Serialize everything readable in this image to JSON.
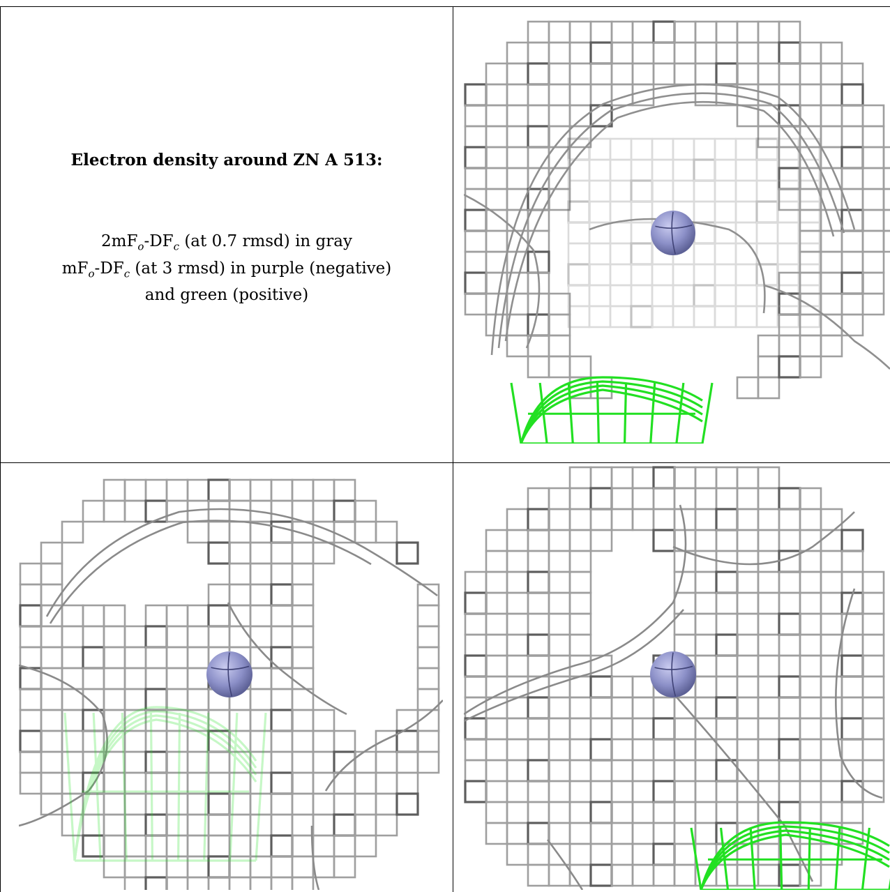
{
  "caption": {
    "title": "Electron density around ZN A 513:",
    "line1": {
      "pre": "2mF",
      "sub1": "o",
      "mid": "-DF",
      "sub2": "c",
      "post": " (at 0.7 rmsd) in gray"
    },
    "line2": {
      "pre": "mF",
      "sub1": "o",
      "mid": "-DF",
      "sub2": "c",
      "post": " (at 3 rmsd) in purple (negative)"
    },
    "line3": "and green (positive)"
  },
  "colors": {
    "mesh_gray": "#9a9a9a",
    "mesh_dark": "#555555",
    "mesh_green": "#22e022",
    "zinc_atom": "#8c90c8",
    "border": "#000000"
  },
  "panels": [
    {
      "name": "view-top-right",
      "atom": "ZN A 513"
    },
    {
      "name": "view-bottom-left",
      "atom": "ZN A 513"
    },
    {
      "name": "view-bottom-right",
      "atom": "ZN A 513"
    }
  ]
}
